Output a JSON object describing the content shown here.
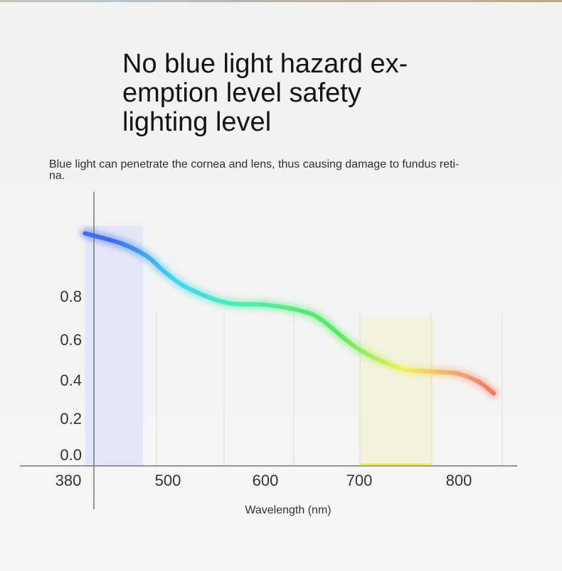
{
  "header": {
    "title_lines": [
      "No blue light hazard ex-",
      "emption level safety",
      "lighting level"
    ],
    "subtitle_lines": [
      "Blue light can penetrate the cornea and lens, thus causing damage to fundus reti-",
      "na."
    ]
  },
  "chart_data": {
    "type": "line",
    "title": "",
    "xlabel": "Wavelength (nm)",
    "ylabel": "",
    "x_tick_labels": [
      "380",
      "500",
      "600",
      "700",
      "800"
    ],
    "y_tick_labels": [
      "0.0",
      "0.2",
      "0.4",
      "0.6",
      "0.8"
    ],
    "x": [
      400,
      445,
      475,
      495,
      520,
      560,
      600,
      640,
      660,
      700,
      740,
      760,
      780,
      800,
      820,
      835
    ],
    "y": [
      1.1,
      1.05,
      0.99,
      0.92,
      0.84,
      0.77,
      0.76,
      0.73,
      0.69,
      0.55,
      0.46,
      0.445,
      0.44,
      0.43,
      0.39,
      0.33
    ],
    "highlight_bands": [
      {
        "x_range": [
          400,
          470
        ],
        "color": "#dfe3f6"
      },
      {
        "x_range": [
          700,
          775
        ],
        "color": "#f2f2d8"
      }
    ],
    "gradient_colors": [
      "#3e6cf0",
      "#3fd6f0",
      "#4cf1a8",
      "#59e85e",
      "#f2f05a",
      "#f4a070",
      "#f05a5a"
    ],
    "grid": false
  }
}
